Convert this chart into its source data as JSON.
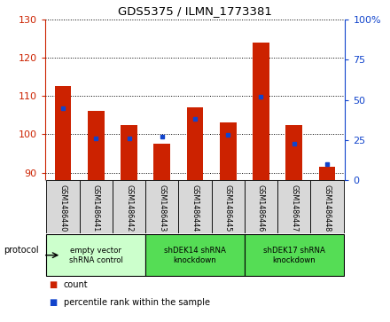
{
  "title": "GDS5375 / ILMN_1773381",
  "samples": [
    "GSM1486440",
    "GSM1486441",
    "GSM1486442",
    "GSM1486443",
    "GSM1486444",
    "GSM1486445",
    "GSM1486446",
    "GSM1486447",
    "GSM1486448"
  ],
  "counts": [
    112.5,
    106.0,
    102.5,
    97.5,
    107.0,
    103.0,
    124.0,
    102.5,
    91.5
  ],
  "percentiles": [
    45,
    26,
    26,
    27,
    38,
    28,
    52,
    23,
    10
  ],
  "ylim_left": [
    88,
    130
  ],
  "ylim_right": [
    0,
    100
  ],
  "yticks_left": [
    90,
    100,
    110,
    120,
    130
  ],
  "yticks_right": [
    0,
    25,
    50,
    75,
    100
  ],
  "bar_color": "#cc2200",
  "dot_color": "#1144cc",
  "protocol_groups": [
    {
      "label": "empty vector\nshRNA control",
      "start": 0,
      "end": 3,
      "color": "#ccffcc"
    },
    {
      "label": "shDEK14 shRNA\nknockdown",
      "start": 3,
      "end": 6,
      "color": "#55dd55"
    },
    {
      "label": "shDEK17 shRNA\nknockdown",
      "start": 6,
      "end": 9,
      "color": "#55dd55"
    }
  ],
  "legend_items": [
    {
      "label": "count",
      "color": "#cc2200"
    },
    {
      "label": "percentile rank within the sample",
      "color": "#1144cc"
    }
  ],
  "protocol_label": "protocol",
  "bar_width": 0.5,
  "xlim": [
    -0.55,
    8.55
  ]
}
